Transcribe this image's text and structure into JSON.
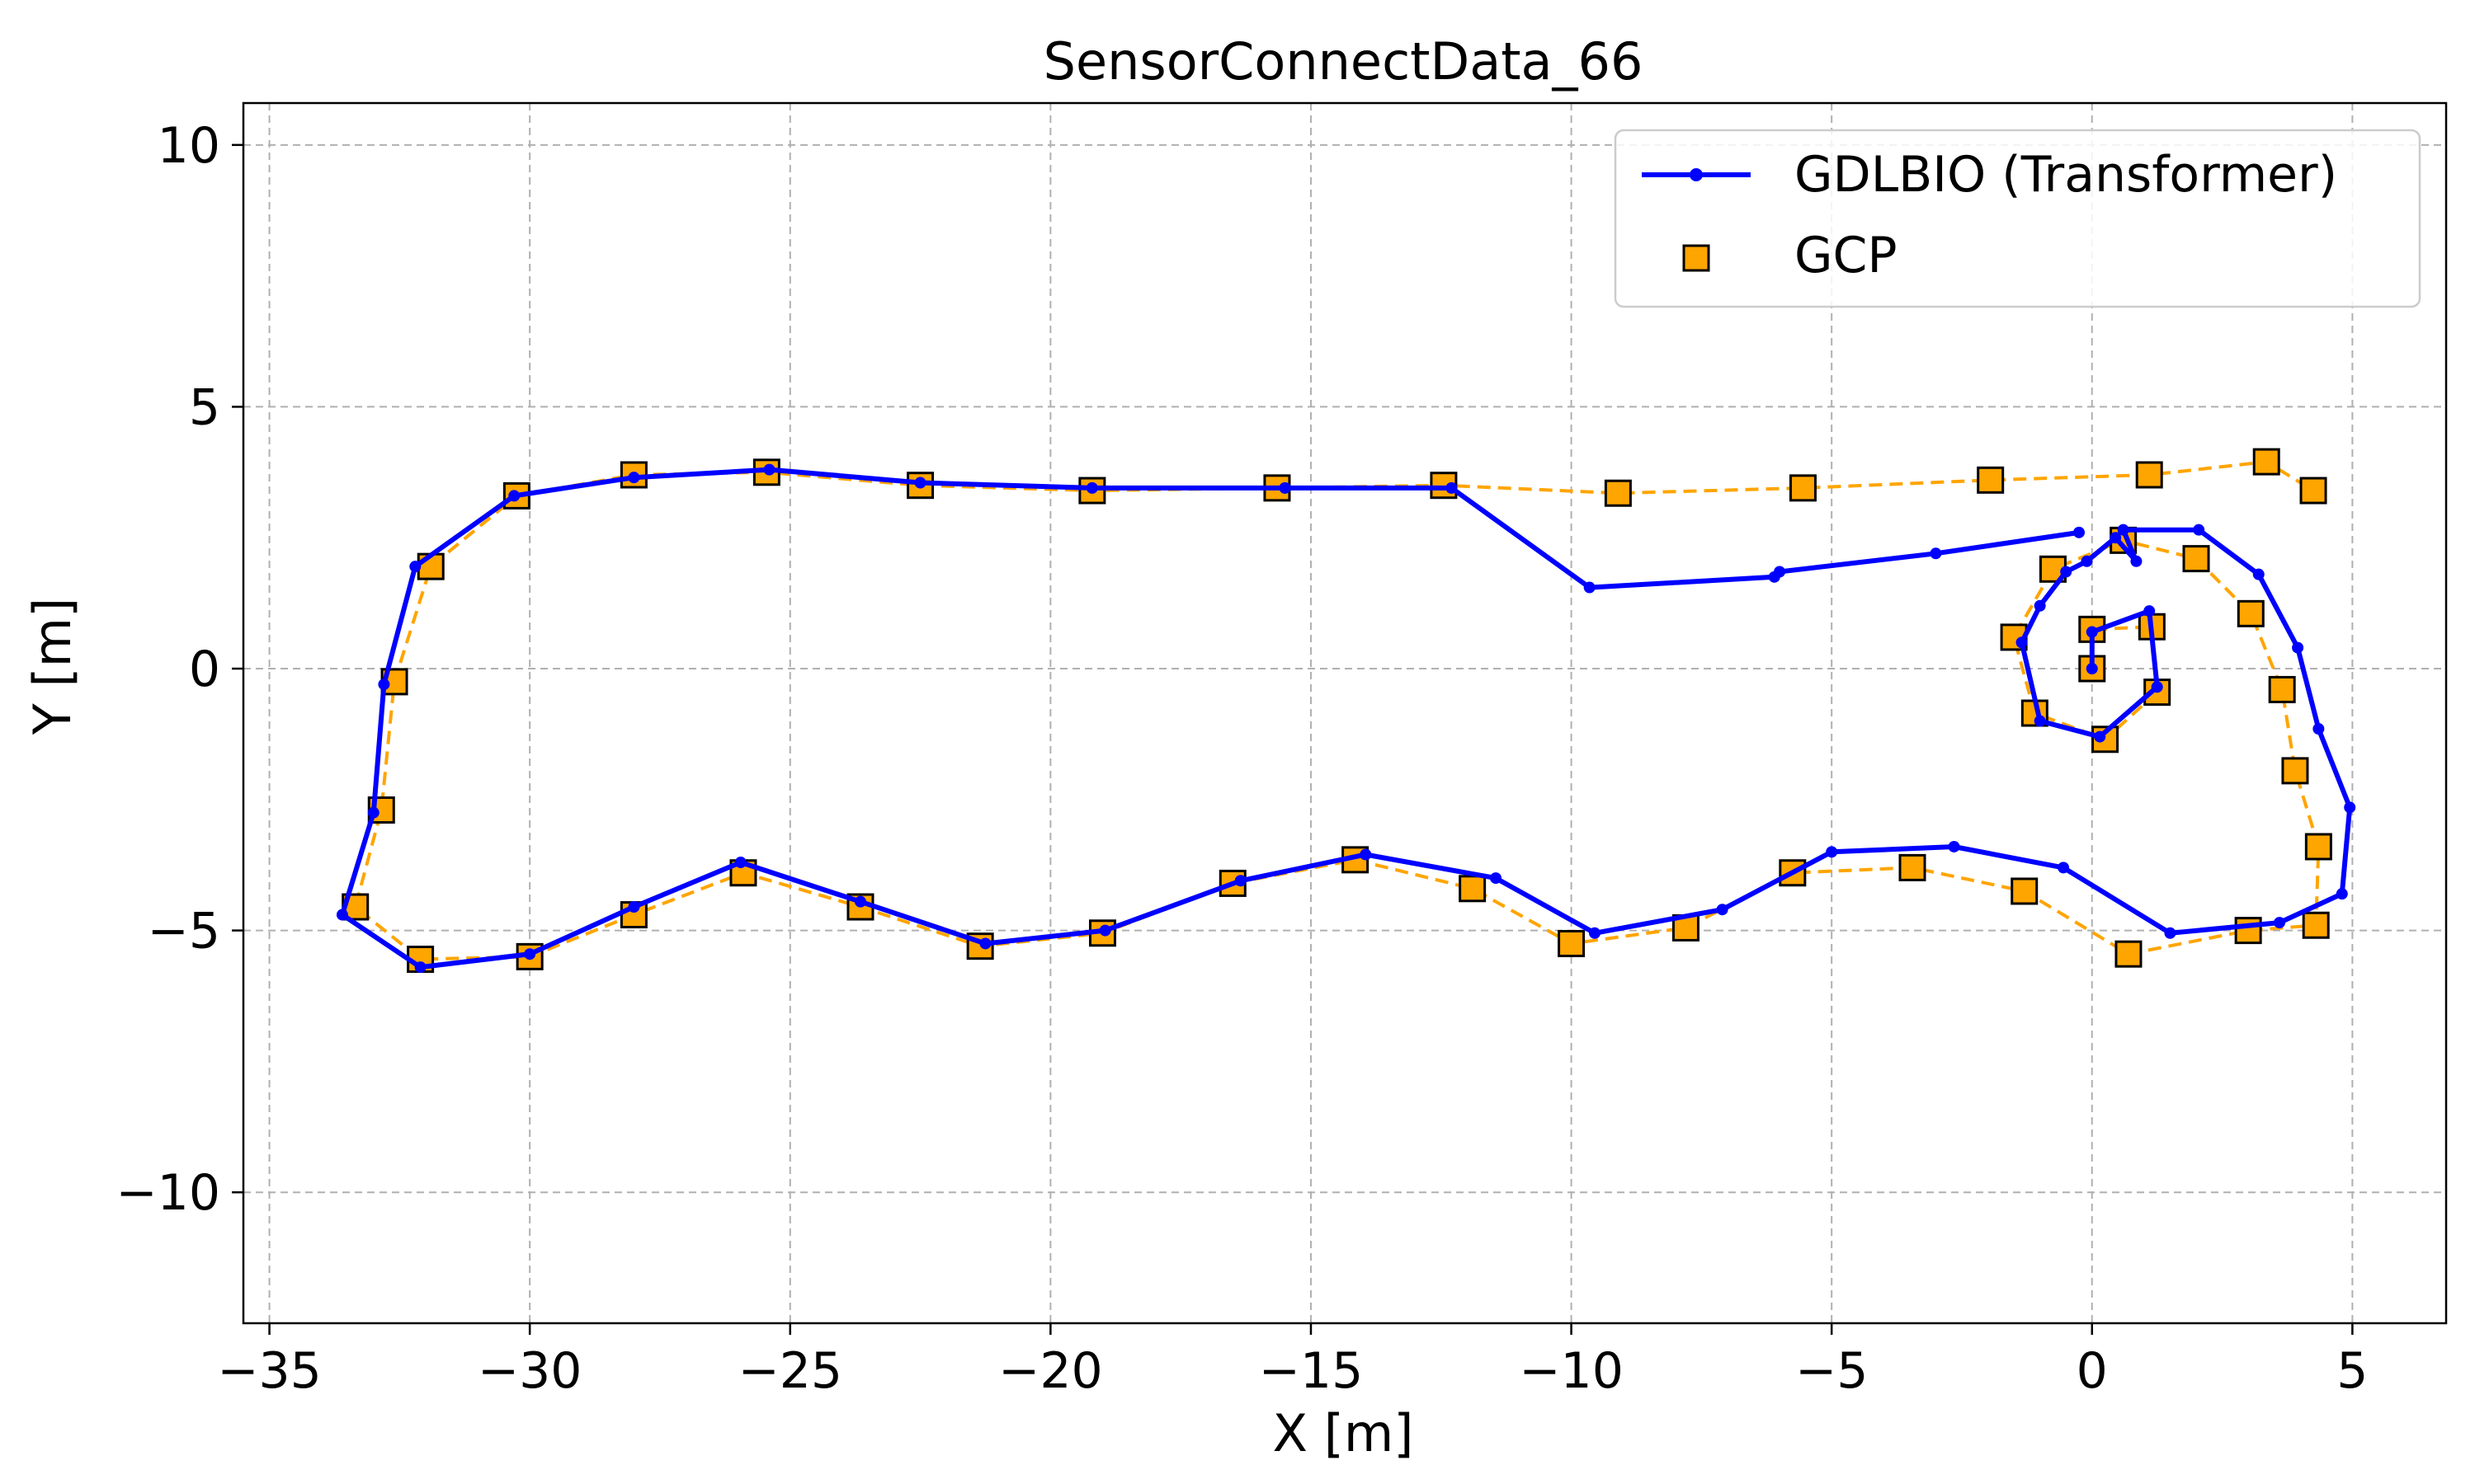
{
  "chart_data": {
    "type": "line",
    "title": "SensorConnectData_66",
    "xlabel": "X [m]",
    "ylabel": "Y [m]",
    "xlim": [
      -35.5,
      6.8
    ],
    "ylim": [
      -12.5,
      10.8
    ],
    "xticks": [
      -35,
      -30,
      -25,
      -20,
      -15,
      -10,
      -5,
      0,
      5
    ],
    "yticks": [
      -10,
      -5,
      0,
      5,
      10
    ],
    "xtick_labels": [
      "−35",
      "−30",
      "−25",
      "−20",
      "−15",
      "−10",
      "−5",
      "0",
      "5"
    ],
    "ytick_labels": [
      "−10",
      "−5",
      "0",
      "5",
      "10"
    ],
    "grid": true,
    "legend_position": "top-right",
    "series": [
      {
        "name": "GDLBIO (Transformer)",
        "color": "#0000ff",
        "style": "solid-line-dot-markers",
        "x": [
          0,
          0,
          1.1,
          1.25,
          0.15,
          -1.0,
          -1.35,
          -1.0,
          -0.5,
          -0.1,
          0.45,
          0.85,
          0.6,
          2.05,
          3.2,
          3.95,
          4.35,
          4.95,
          4.8,
          3.6,
          1.5,
          -0.55,
          -2.65,
          -5.0,
          -7.1,
          -9.55,
          -11.45,
          -13.95,
          -16.35,
          -18.95,
          -21.25,
          -23.65,
          -25.95,
          -28.0,
          -30.0,
          -32.1,
          -33.6,
          -33.0,
          -32.8,
          -32.2,
          -30.3,
          -28.0,
          -25.4,
          -22.5,
          -19.2,
          -15.5,
          -12.3,
          -9.65,
          -6.1,
          -6.0,
          -3.0,
          -0.25
        ],
        "y": [
          0,
          0.7,
          1.1,
          -0.35,
          -1.3,
          -1.0,
          0.5,
          1.2,
          1.85,
          2.05,
          2.5,
          2.05,
          2.65,
          2.65,
          1.8,
          0.4,
          -1.15,
          -2.65,
          -4.3,
          -4.85,
          -5.05,
          -3.8,
          -3.4,
          -3.5,
          -4.6,
          -5.05,
          -4.0,
          -3.55,
          -4.05,
          -5.0,
          -5.25,
          -4.45,
          -3.7,
          -4.55,
          -5.45,
          -5.7,
          -4.7,
          -2.75,
          -0.3,
          1.95,
          3.3,
          3.65,
          3.8,
          3.55,
          3.45,
          3.45,
          3.45,
          1.55,
          1.75,
          1.85,
          2.2,
          2.6
        ]
      },
      {
        "name": "GCP",
        "color": "#ffa500",
        "style": "dashed-line-square-markers",
        "x": [
          0,
          0,
          1.15,
          1.25,
          0.25,
          -1.1,
          -1.5,
          -0.75,
          0.6,
          2.0,
          3.05,
          3.65,
          3.9,
          4.35,
          4.3,
          3.0,
          0.7,
          -1.3,
          -3.45,
          -5.75,
          -7.8,
          -10.0,
          -11.9,
          -14.15,
          -16.5,
          -19.0,
          -21.35,
          -23.65,
          -25.9,
          -28.0,
          -30.0,
          -32.1,
          -33.35,
          -32.85,
          -32.6,
          -31.9,
          -30.25,
          -28.0,
          -25.45,
          -22.5,
          -19.2,
          -15.65,
          -12.45,
          -9.1,
          -5.55,
          -1.95,
          1.1,
          3.35,
          4.25
        ],
        "y": [
          0,
          0.75,
          0.8,
          -0.45,
          -1.35,
          -0.85,
          0.6,
          1.9,
          2.45,
          2.1,
          1.05,
          -0.4,
          -1.95,
          -3.4,
          -4.9,
          -5.0,
          -5.45,
          -4.25,
          -3.8,
          -3.9,
          -4.95,
          -5.25,
          -4.2,
          -3.65,
          -4.1,
          -5.05,
          -5.3,
          -4.55,
          -3.9,
          -4.7,
          -5.5,
          -5.55,
          -4.55,
          -2.7,
          -0.25,
          1.95,
          3.3,
          3.7,
          3.75,
          3.5,
          3.4,
          3.45,
          3.5,
          3.35,
          3.45,
          3.6,
          3.7,
          3.95,
          3.4
        ]
      }
    ]
  }
}
